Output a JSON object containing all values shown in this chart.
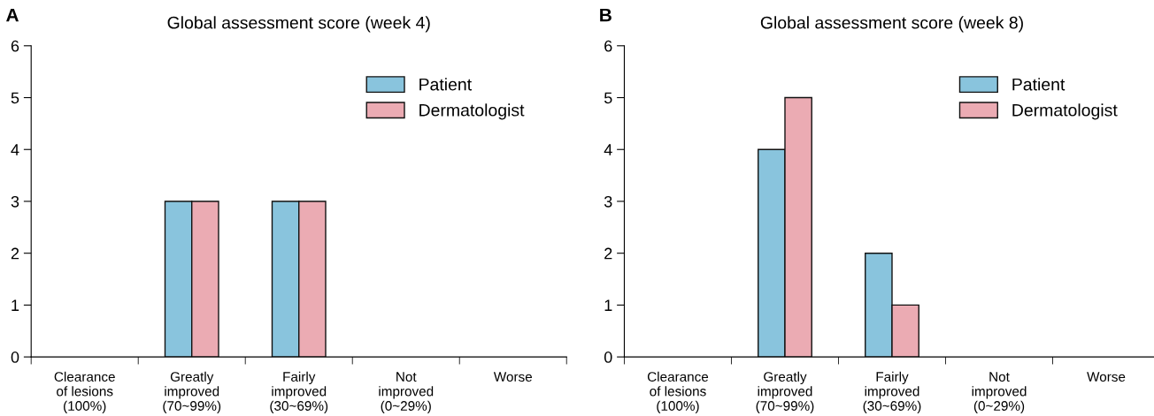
{
  "chart_data": [
    {
      "type": "bar",
      "title": "Global assessment score (week 4)",
      "annotations": [
        "A"
      ],
      "categories": [
        "Clearance\nof lesions\n(100%)",
        "Greatly\nimproved\n(70~99%)",
        "Fairly\nimproved\n(30~69%)",
        "Not\nimproved\n(0~29%)",
        "Worse"
      ],
      "series": [
        {
          "name": "Patient",
          "color": "#89c4dd",
          "values": [
            0,
            3,
            3,
            0,
            0
          ]
        },
        {
          "name": "Dermatologist",
          "color": "#ebabb3",
          "values": [
            0,
            3,
            3,
            0,
            0
          ]
        }
      ],
      "ylim": [
        0,
        6
      ],
      "yticks": [
        0,
        1,
        2,
        3,
        4,
        5,
        6
      ],
      "grid": false,
      "legend": "top right"
    },
    {
      "type": "bar",
      "title": "Global assessment score (week 8)",
      "annotations": [
        "B"
      ],
      "categories": [
        "Clearance\nof lesions\n(100%)",
        "Greatly\nimproved\n(70~99%)",
        "Fairly\nimproved\n(30~69%)",
        "Not\nimproved\n(0~29%)",
        "Worse"
      ],
      "series": [
        {
          "name": "Patient",
          "color": "#89c4dd",
          "values": [
            0,
            4,
            2,
            0,
            0
          ]
        },
        {
          "name": "Dermatologist",
          "color": "#ebabb3",
          "values": [
            0,
            5,
            1,
            0,
            0
          ]
        }
      ],
      "ylim": [
        0,
        6
      ],
      "yticks": [
        0,
        1,
        2,
        3,
        4,
        5,
        6
      ],
      "grid": false,
      "legend": "top right"
    }
  ]
}
